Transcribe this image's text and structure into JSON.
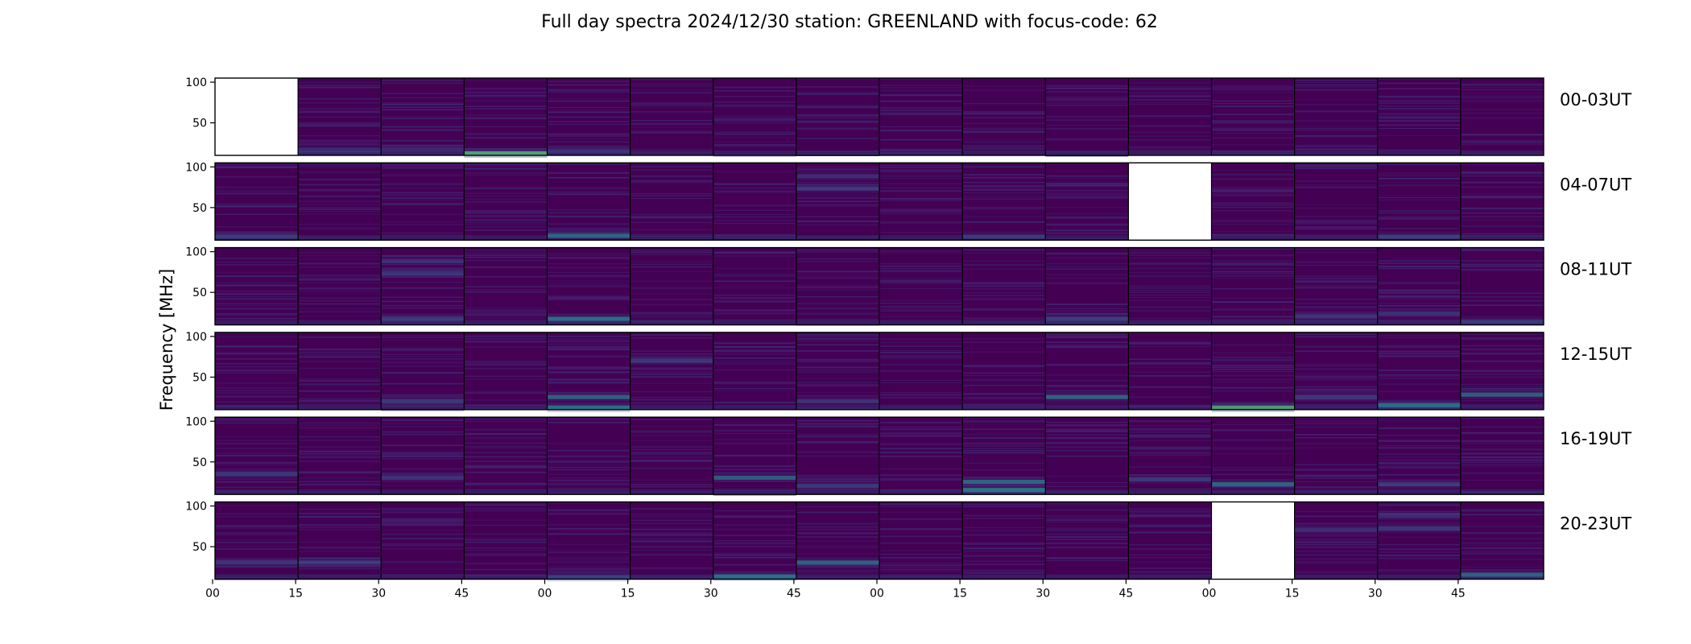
{
  "chart_data": {
    "type": "heatmap",
    "title": "Full day spectra 2024/12/30 station: GREENLAND with focus-code: 62",
    "ylabel": "Frequency [MHz]",
    "xlabel": "",
    "ylim": [
      10,
      105
    ],
    "y_ticks": [
      "100",
      "50"
    ],
    "x_ticks": [
      "00",
      "15",
      "30",
      "45",
      "00",
      "15",
      "30",
      "45",
      "00",
      "15",
      "30",
      "45",
      "00",
      "15",
      "30",
      "45"
    ],
    "colormap": "viridis",
    "colors": {
      "background": "#440154",
      "mid": "#3b528b",
      "teal": "#21918c",
      "green": "#5ec962",
      "empty": "#ffffff"
    },
    "panels_per_row": 16,
    "rows": [
      {
        "label": "00-03UT",
        "missing_panels": [
          0
        ],
        "bright_bands": [
          [
            3,
            12,
            0.9
          ],
          [
            1,
            16,
            0.3
          ],
          [
            4,
            15,
            0.35
          ],
          [
            2,
            17,
            0.3
          ]
        ]
      },
      {
        "label": "04-07UT",
        "missing_panels": [
          11
        ],
        "bright_bands": [
          [
            4,
            15,
            0.6
          ],
          [
            0,
            14,
            0.4
          ],
          [
            7,
            73,
            0.45
          ],
          [
            7,
            88,
            0.35
          ],
          [
            14,
            14,
            0.45
          ],
          [
            9,
            14,
            0.4
          ]
        ]
      },
      {
        "label": "08-11UT",
        "missing_panels": [],
        "bright_bands": [
          [
            4,
            17,
            0.7
          ],
          [
            2,
            17,
            0.5
          ],
          [
            2,
            73,
            0.4
          ],
          [
            2,
            88,
            0.35
          ],
          [
            13,
            20,
            0.45
          ],
          [
            10,
            17,
            0.5
          ],
          [
            14,
            23,
            0.4
          ],
          [
            15,
            14,
            0.35
          ]
        ]
      },
      {
        "label": "12-15UT",
        "missing_panels": [],
        "bright_bands": [
          [
            4,
            25,
            0.6
          ],
          [
            4,
            12,
            0.7
          ],
          [
            5,
            70,
            0.45
          ],
          [
            12,
            12,
            0.8
          ],
          [
            13,
            25,
            0.5
          ],
          [
            14,
            15,
            0.7
          ],
          [
            15,
            28,
            0.55
          ],
          [
            10,
            25,
            0.6
          ],
          [
            7,
            20,
            0.4
          ],
          [
            2,
            20,
            0.5
          ]
        ]
      },
      {
        "label": "16-19UT",
        "missing_panels": [],
        "bright_bands": [
          [
            9,
            15,
            0.75
          ],
          [
            9,
            25,
            0.6
          ],
          [
            12,
            22,
            0.6
          ],
          [
            6,
            30,
            0.55
          ],
          [
            7,
            20,
            0.5
          ],
          [
            11,
            28,
            0.5
          ],
          [
            0,
            35,
            0.45
          ],
          [
            2,
            30,
            0.45
          ],
          [
            14,
            22,
            0.5
          ]
        ]
      },
      {
        "label": "20-23UT",
        "missing_panels": [
          12
        ],
        "bright_bands": [
          [
            6,
            13,
            0.7
          ],
          [
            7,
            30,
            0.6
          ],
          [
            15,
            15,
            0.55
          ],
          [
            14,
            72,
            0.45
          ],
          [
            14,
            88,
            0.35
          ],
          [
            0,
            30,
            0.45
          ],
          [
            1,
            30,
            0.45
          ],
          [
            4,
            12,
            0.45
          ],
          [
            13,
            70,
            0.35
          ]
        ]
      }
    ]
  }
}
